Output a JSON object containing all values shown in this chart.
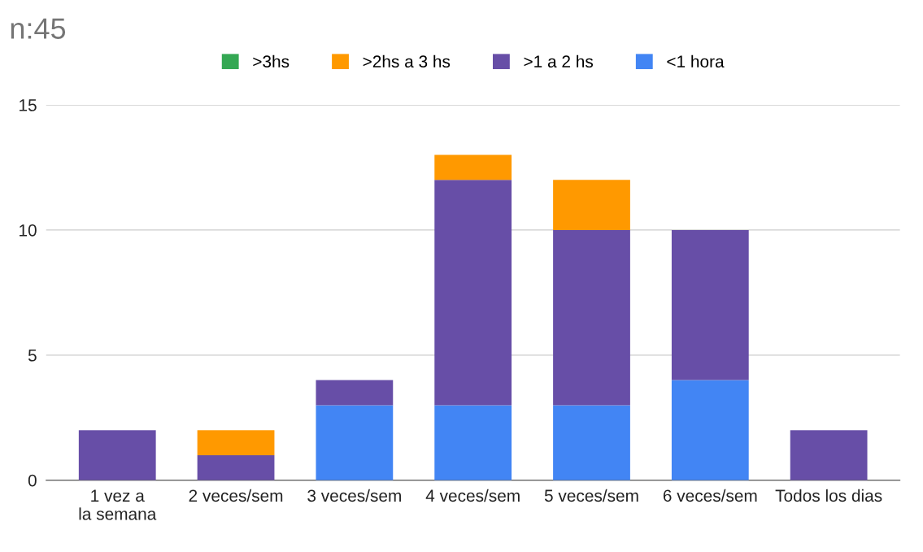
{
  "chart_data": {
    "type": "bar",
    "title": "n:45",
    "stacked": true,
    "categories": [
      "1 vez a la semana",
      "2 veces/sem",
      "3 veces/sem",
      "4 veces/sem",
      "5 veces/sem",
      "6 veces/sem",
      "Todos los dias"
    ],
    "series": [
      {
        "name": "<1 hora",
        "color": "#4285f4",
        "values": [
          0,
          0,
          3,
          3,
          3,
          4,
          0
        ]
      },
      {
        "name": ">1 a 2 hs",
        "color": "#674ea7",
        "values": [
          2,
          1,
          1,
          9,
          7,
          6,
          2
        ]
      },
      {
        "name": ">2hs a 3 hs",
        "color": "#ff9900",
        "values": [
          0,
          1,
          0,
          1,
          2,
          0,
          0
        ]
      },
      {
        "name": ">3hs",
        "color": "#34a853",
        "values": [
          0,
          0,
          0,
          0,
          0,
          0,
          0
        ]
      }
    ],
    "ylim": [
      0,
      15
    ],
    "yticks": [
      0,
      5,
      10,
      15
    ],
    "grid": "y",
    "legend": "top"
  }
}
